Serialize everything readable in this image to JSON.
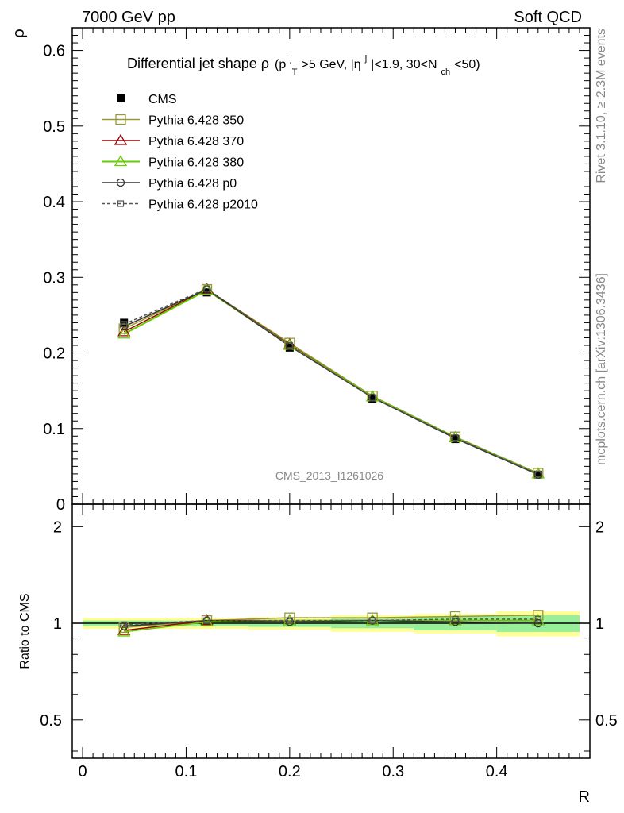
{
  "header": {
    "left": "7000 GeV pp",
    "right": "Soft QCD"
  },
  "side_labels": {
    "rivet": "Rivet 3.1.10, ≥ 2.3M events",
    "mcplots": "mcplots.cern.ch [arXiv:1306.3436]"
  },
  "watermark": "CMS_2013_I1261026",
  "title": {
    "main": "Differential jet shape ρ",
    "p": "(p",
    "p_sup": "j",
    "p_sub": "T",
    "mid": ">5 GeV, |η",
    "eta_sup": "j",
    "rest": "|<1.9, 30<N",
    "n_sub": "ch",
    "end": "<50)"
  },
  "axes": {
    "ylabel_top": "ρ",
    "ylabel_bottom": "Ratio to CMS",
    "xlabel": "R",
    "top_ticks": [
      "0",
      "0.1",
      "0.2",
      "0.3",
      "0.4",
      "0.5",
      "0.6"
    ],
    "ratio_ticks": [
      "0.5",
      "1",
      "2"
    ],
    "x_ticks": [
      "0",
      "0.1",
      "0.2",
      "0.3",
      "0.4"
    ]
  },
  "legend": [
    {
      "label": "CMS",
      "color": "#000000",
      "marker": "filled-square",
      "dash": false
    },
    {
      "label": "Pythia 6.428 350",
      "color": "#999933",
      "marker": "open-square",
      "dash": false
    },
    {
      "label": "Pythia 6.428 370",
      "color": "#990000",
      "marker": "open-triangle",
      "dash": false
    },
    {
      "label": "Pythia 6.428 380",
      "color": "#66cc00",
      "marker": "open-triangle",
      "dash": false
    },
    {
      "label": "Pythia 6.428 p0",
      "color": "#333333",
      "marker": "open-circle",
      "dash": false
    },
    {
      "label": "Pythia 6.428 p2010",
      "color": "#555555",
      "marker": "open-square-small",
      "dash": true
    }
  ],
  "chart_data": {
    "type": "line",
    "xlabel": "R",
    "ylabel": "ρ",
    "xlim": [
      -0.01,
      0.49
    ],
    "ylim": [
      0,
      0.63
    ],
    "ratio_ylabel": "Ratio to CMS",
    "ratio_ylim": [
      0.38,
      2.35
    ],
    "ratio_log": true,
    "x": [
      0.04,
      0.12,
      0.2,
      0.28,
      0.36,
      0.44
    ],
    "bin_edges": [
      0.0,
      0.08,
      0.16,
      0.24,
      0.32,
      0.4,
      0.48
    ],
    "series": [
      {
        "name": "CMS",
        "values": [
          0.24,
          0.28,
          0.207,
          0.139,
          0.086,
          0.039
        ]
      },
      {
        "name": "Pythia 6.428 350",
        "values": [
          0.232,
          0.284,
          0.213,
          0.143,
          0.089,
          0.041
        ]
      },
      {
        "name": "Pythia 6.428 370",
        "values": [
          0.228,
          0.284,
          0.211,
          0.142,
          0.088,
          0.04
        ]
      },
      {
        "name": "Pythia 6.428 380",
        "values": [
          0.225,
          0.283,
          0.21,
          0.142,
          0.088,
          0.04
        ]
      },
      {
        "name": "Pythia 6.428 p0",
        "values": [
          0.235,
          0.284,
          0.209,
          0.141,
          0.087,
          0.039
        ]
      },
      {
        "name": "Pythia 6.428 p2010",
        "values": [
          0.238,
          0.285,
          0.21,
          0.141,
          0.088,
          0.04
        ]
      }
    ],
    "ratio_series": [
      {
        "name": "Pythia 6.428 350",
        "values": [
          0.97,
          1.02,
          1.04,
          1.04,
          1.05,
          1.06
        ]
      },
      {
        "name": "Pythia 6.428 370",
        "values": [
          0.95,
          1.02,
          1.02,
          1.02,
          1.02,
          1.02
        ]
      },
      {
        "name": "Pythia 6.428 380",
        "values": [
          0.94,
          1.01,
          1.02,
          1.02,
          1.02,
          1.02
        ]
      },
      {
        "name": "Pythia 6.428 p0",
        "values": [
          0.98,
          1.02,
          1.01,
          1.02,
          1.01,
          1.0
        ]
      },
      {
        "name": "Pythia 6.428 p2010",
        "values": [
          0.99,
          1.02,
          1.02,
          1.02,
          1.03,
          1.03
        ]
      }
    ],
    "uncertainty_bands": {
      "stat_color": "#99ee99",
      "total_color": "#ffff99",
      "stat_half_width": [
        0.02,
        0.02,
        0.025,
        0.035,
        0.05,
        0.06
      ],
      "total_half_width": [
        0.04,
        0.04,
        0.045,
        0.06,
        0.07,
        0.09
      ]
    }
  }
}
